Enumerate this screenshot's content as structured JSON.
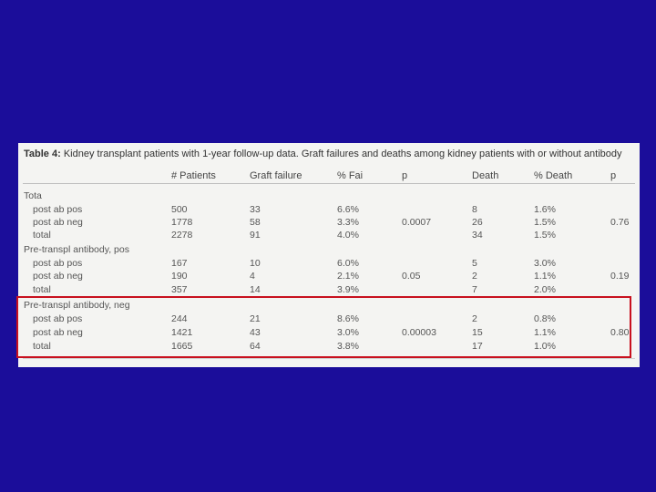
{
  "caption": {
    "label": "Table 4:",
    "text": "Kidney transplant patients with 1-year follow-up data. Graft failures and deaths among kidney patients with or without antibody"
  },
  "columns": [
    "# Patients",
    "Graft failure",
    "% Fai",
    "p",
    "Death",
    "% Death",
    "p"
  ],
  "groups": [
    {
      "title": "Tota",
      "p_fail": "0.0007",
      "p_death": "0.76",
      "rows": [
        {
          "label": "post ab pos",
          "patients": "500",
          "graft": "33",
          "pct_fail": "6.6%",
          "death": "8",
          "pct_death": "1.6%"
        },
        {
          "label": "post ab neg",
          "patients": "1778",
          "graft": "58",
          "pct_fail": "3.3%",
          "death": "26",
          "pct_death": "1.5%"
        },
        {
          "label": "total",
          "patients": "2278",
          "graft": "91",
          "pct_fail": "4.0%",
          "death": "34",
          "pct_death": "1.5%"
        }
      ]
    },
    {
      "title": "Pre-transpl antibody, pos",
      "p_fail": "0.05",
      "p_death": "0.19",
      "rows": [
        {
          "label": "post ab pos",
          "patients": "167",
          "graft": "10",
          "pct_fail": "6.0%",
          "death": "5",
          "pct_death": "3.0%"
        },
        {
          "label": "post ab neg",
          "patients": "190",
          "graft": "4",
          "pct_fail": "2.1%",
          "death": "2",
          "pct_death": "1.1%"
        },
        {
          "label": "total",
          "patients": "357",
          "graft": "14",
          "pct_fail": "3.9%",
          "death": "7",
          "pct_death": "2.0%"
        }
      ]
    },
    {
      "title": "Pre-transpl antibody, neg",
      "p_fail": "0.00003",
      "p_death": "0.80",
      "rows": [
        {
          "label": "post ab pos",
          "patients": "244",
          "graft": "21",
          "pct_fail": "8.6%",
          "death": "2",
          "pct_death": "0.8%"
        },
        {
          "label": "post ab neg",
          "patients": "1421",
          "graft": "43",
          "pct_fail": "3.0%",
          "death": "15",
          "pct_death": "1.1%"
        },
        {
          "label": "total",
          "patients": "1665",
          "graft": "64",
          "pct_fail": "3.8%",
          "death": "17",
          "pct_death": "1.0%"
        }
      ]
    }
  ]
}
